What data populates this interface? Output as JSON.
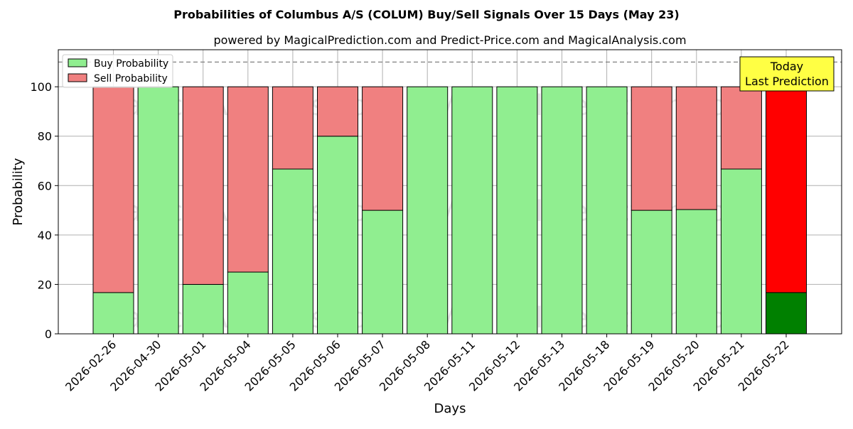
{
  "chart_data": {
    "type": "bar",
    "stacked": true,
    "title": "Probabilities of Columbus A/S (COLUM) Buy/Sell Signals Over 15 Days (May 23)",
    "subtitle": "powered by MagicalPrediction.com and Predict-Price.com and MagicalAnalysis.com",
    "xlabel": "Days",
    "ylabel": "Probability",
    "ylim": [
      0,
      115
    ],
    "yticks": [
      0,
      20,
      40,
      60,
      80,
      100
    ],
    "grid": true,
    "reference_line": 110,
    "legend_position": "top-left",
    "categories": [
      "2026-02-26",
      "2026-04-30",
      "2026-05-01",
      "2026-05-04",
      "2026-05-05",
      "2026-05-06",
      "2026-05-07",
      "2026-05-08",
      "2026-05-11",
      "2026-05-12",
      "2026-05-13",
      "2026-05-18",
      "2026-05-19",
      "2026-05-20",
      "2026-05-21",
      "2026-05-22"
    ],
    "series": [
      {
        "name": "Buy Probability",
        "color": "#90EE90",
        "values": [
          16.7,
          100,
          20,
          25,
          66.7,
          80,
          50,
          100,
          100,
          100,
          100,
          100,
          50,
          50.3,
          66.7,
          16.7
        ]
      },
      {
        "name": "Sell Probability",
        "color": "#F08080",
        "values": [
          83.3,
          0,
          80,
          75,
          33.3,
          20,
          50,
          0,
          0,
          0,
          0,
          0,
          50,
          49.7,
          33.3,
          83.3
        ]
      }
    ],
    "highlight": {
      "index": 15,
      "buy_color": "#008000",
      "sell_color": "#FF0000"
    },
    "annotation": {
      "lines": [
        "Today",
        "Last Prediction"
      ],
      "background": "#FFFF44"
    },
    "watermarks": [
      "MagicalAnalysis.com",
      "MagicalPrediction.com"
    ]
  }
}
